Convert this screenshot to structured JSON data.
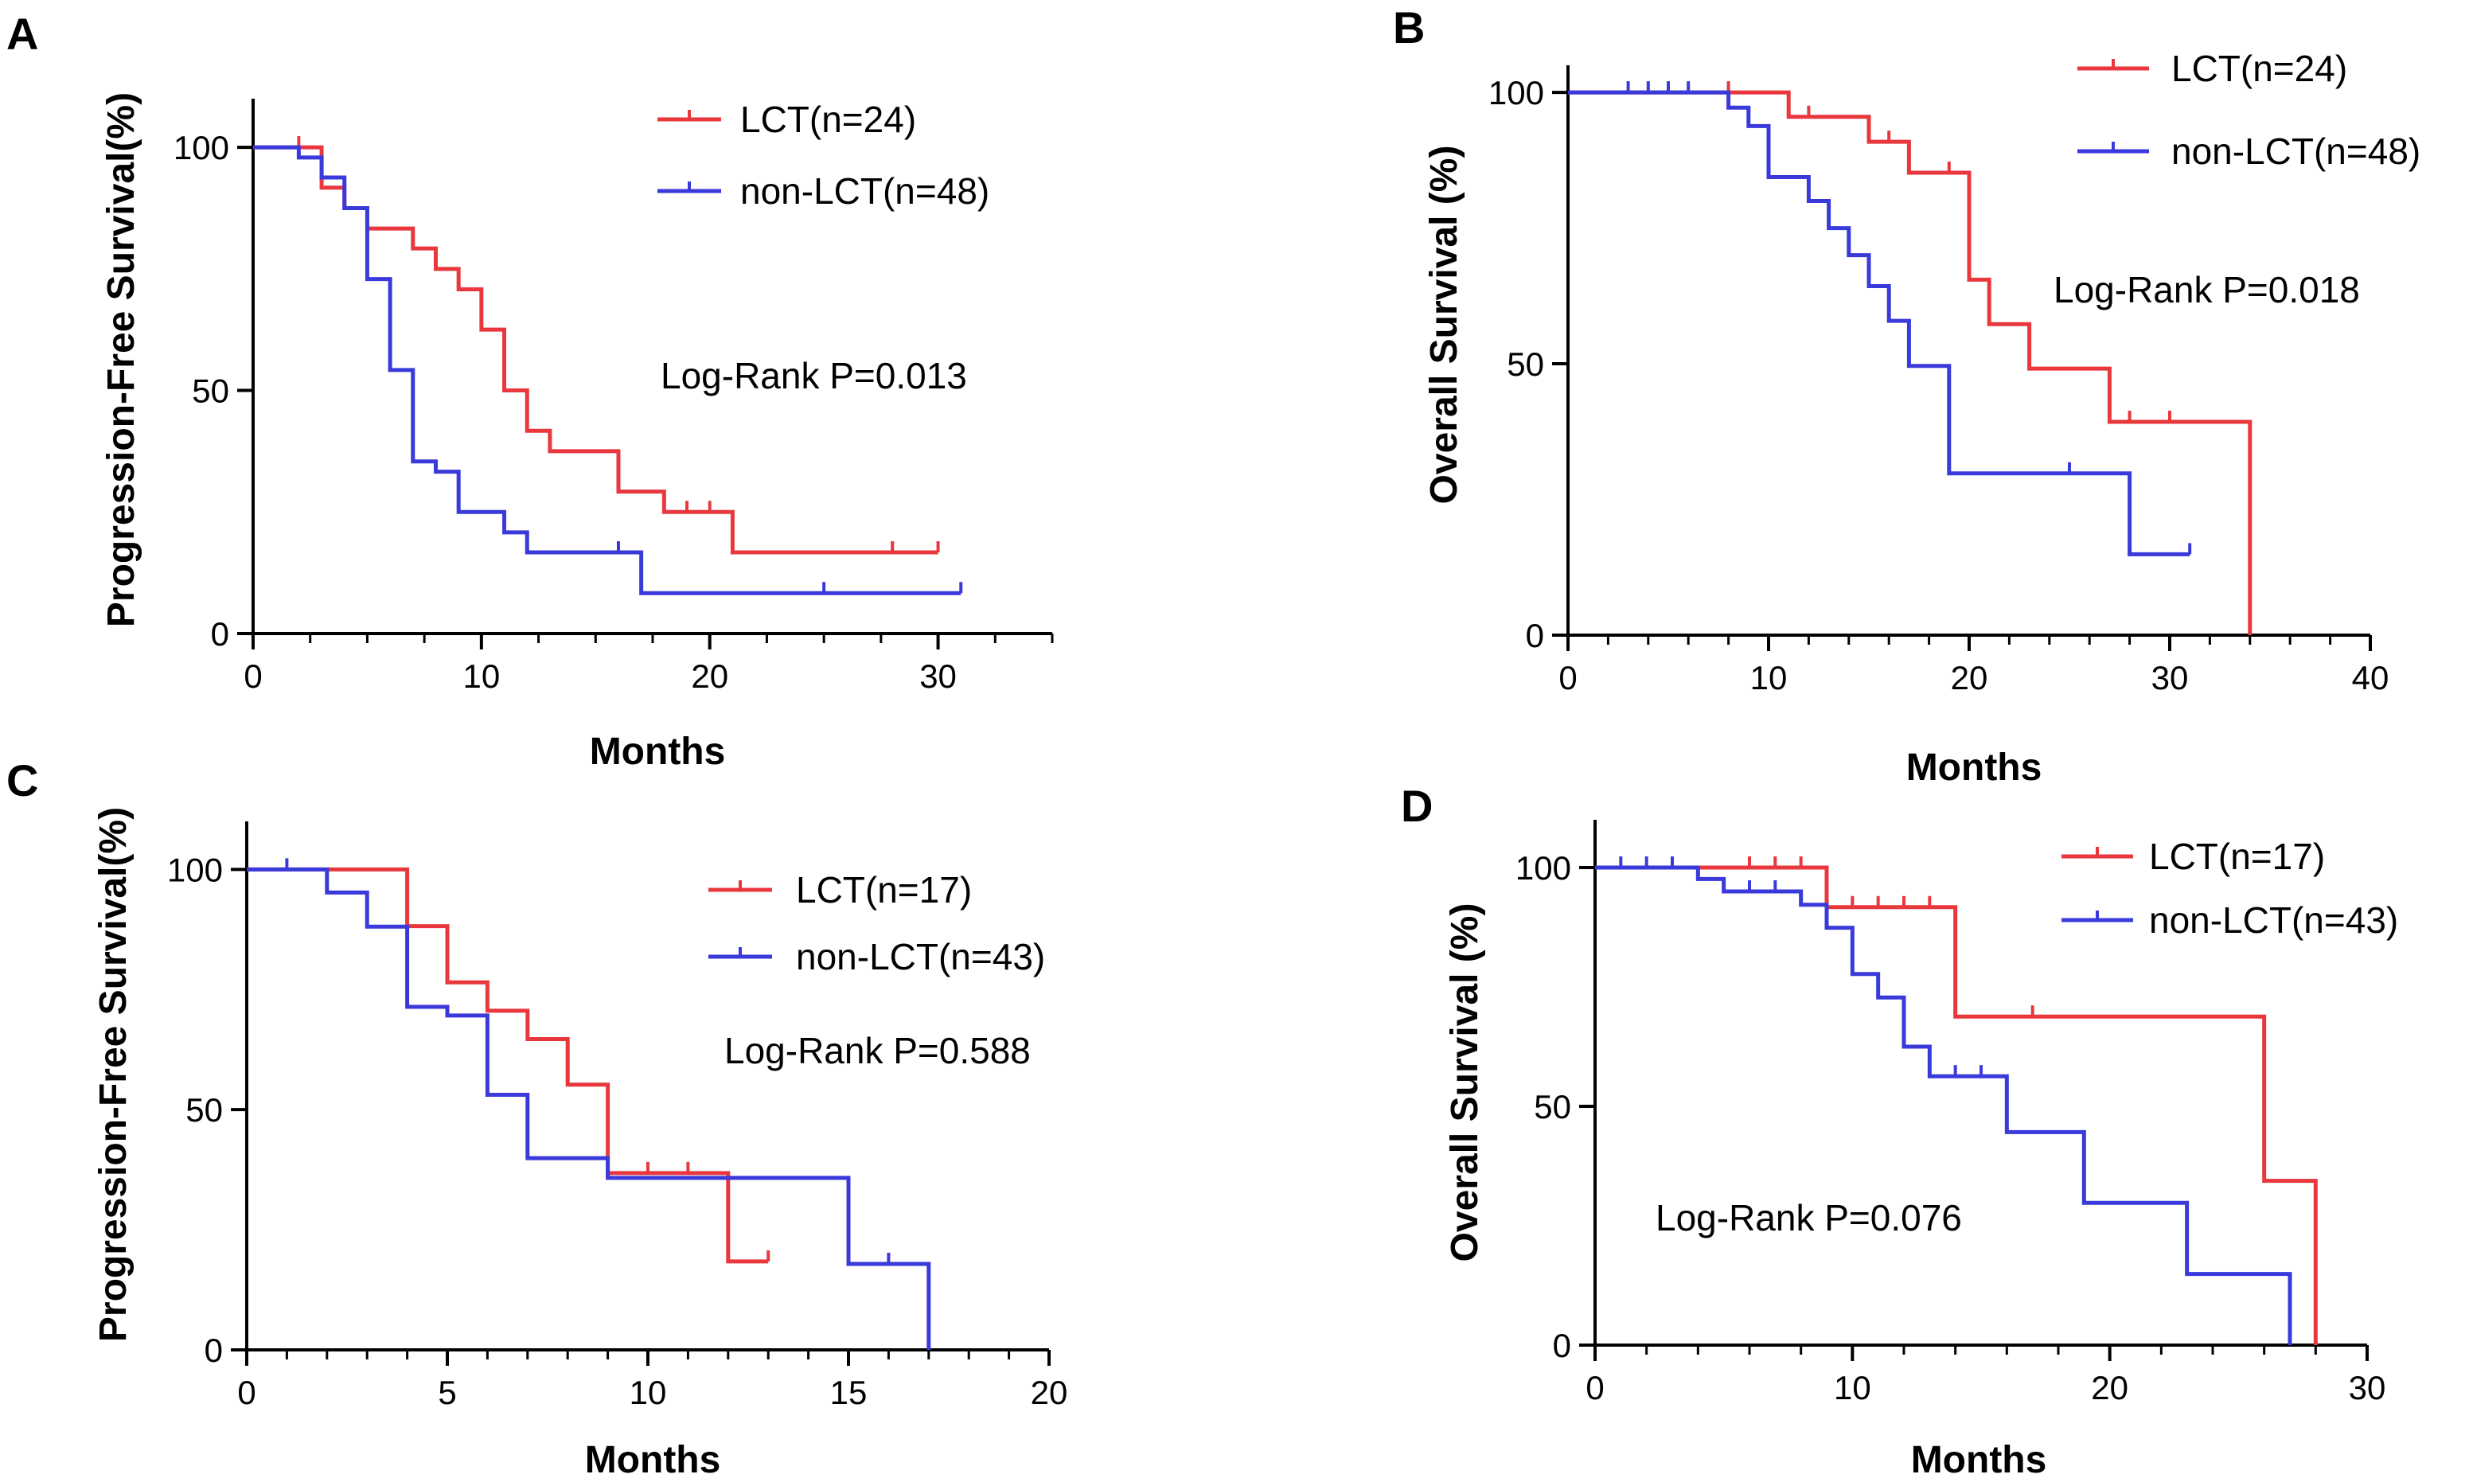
{
  "figure": {
    "colors": {
      "lct": "#e8383d",
      "non_lct": "#3a3adb",
      "axis": "#000000"
    }
  },
  "chart_data": [
    {
      "panel": "A",
      "type": "line",
      "subtype": "kaplan-meier",
      "xlabel": "Months",
      "ylabel": "Progression-Free Survival(%)",
      "xlim": [
        0,
        35
      ],
      "ylim": [
        0,
        110
      ],
      "xticks": [
        0,
        10,
        20,
        30
      ],
      "yticks": [
        0,
        50,
        100
      ],
      "x_minor_step": 2.5,
      "annotation": "Log-Rank P=0.013",
      "series": [
        {
          "name": "LCT(n=24)",
          "color": "#e8383d",
          "steps": [
            [
              0,
              100
            ],
            [
              3,
              91.7
            ],
            [
              4,
              87.5
            ],
            [
              5,
              83.3
            ],
            [
              7,
              79.2
            ],
            [
              8,
              75
            ],
            [
              9,
              70.8
            ],
            [
              10,
              62.5
            ],
            [
              11,
              50
            ],
            [
              12,
              41.7
            ],
            [
              13,
              37.5
            ],
            [
              16,
              29.2
            ],
            [
              18,
              25
            ],
            [
              21,
              16.7
            ],
            [
              30,
              16.7
            ]
          ],
          "censor": [
            [
              2,
              100
            ],
            [
              19,
              25
            ],
            [
              20,
              25
            ],
            [
              28,
              16.7
            ],
            [
              30,
              16.7
            ]
          ]
        },
        {
          "name": "non-LCT(n=48)",
          "color": "#3a3adb",
          "steps": [
            [
              0,
              100
            ],
            [
              2,
              97.9
            ],
            [
              3,
              93.8
            ],
            [
              4,
              87.5
            ],
            [
              5,
              72.9
            ],
            [
              6,
              54.2
            ],
            [
              7,
              35.4
            ],
            [
              8,
              33.3
            ],
            [
              9,
              25
            ],
            [
              11,
              20.8
            ],
            [
              12,
              16.7
            ],
            [
              17,
              8.3
            ],
            [
              31,
              8.3
            ]
          ],
          "censor": [
            [
              16,
              16.7
            ],
            [
              25,
              8.3
            ],
            [
              31,
              8.3
            ]
          ]
        }
      ]
    },
    {
      "panel": "B",
      "type": "line",
      "subtype": "kaplan-meier",
      "xlabel": "Months",
      "ylabel": "Overall Survival (%)",
      "xlim": [
        0,
        40
      ],
      "ylim": [
        0,
        105
      ],
      "xticks": [
        0,
        10,
        20,
        30,
        40
      ],
      "yticks": [
        0,
        50,
        100
      ],
      "x_minor_step": 2,
      "annotation": "Log-Rank P=0.018",
      "series": [
        {
          "name": "LCT(n=24)",
          "color": "#e8383d",
          "steps": [
            [
              0,
              100
            ],
            [
              11,
              95.5
            ],
            [
              15,
              90.9
            ],
            [
              17,
              85.2
            ],
            [
              20,
              65.5
            ],
            [
              21,
              57.3
            ],
            [
              23,
              49.1
            ],
            [
              27,
              39.3
            ],
            [
              34,
              39.3
            ],
            [
              34,
              0
            ]
          ],
          "censor": [
            [
              8,
              100
            ],
            [
              12,
              95.5
            ],
            [
              16,
              90.9
            ],
            [
              19,
              85.2
            ],
            [
              28,
              39.3
            ],
            [
              30,
              39.3
            ]
          ]
        },
        {
          "name": "non-LCT(n=48)",
          "color": "#3a3adb",
          "steps": [
            [
              0,
              100
            ],
            [
              8,
              97.2
            ],
            [
              9,
              93.8
            ],
            [
              10,
              84.4
            ],
            [
              12,
              80
            ],
            [
              13,
              75
            ],
            [
              14,
              70
            ],
            [
              15,
              64.3
            ],
            [
              16,
              57.9
            ],
            [
              17,
              49.6
            ],
            [
              19,
              29.8
            ],
            [
              28,
              14.9
            ],
            [
              31,
              14.9
            ]
          ],
          "censor": [
            [
              3,
              100
            ],
            [
              4,
              100
            ],
            [
              5,
              100
            ],
            [
              6,
              100
            ],
            [
              25,
              29.8
            ],
            [
              31,
              14.9
            ]
          ]
        }
      ]
    },
    {
      "panel": "C",
      "type": "line",
      "subtype": "kaplan-meier",
      "xlabel": "Months",
      "ylabel": "Progression-Free Survival(%)",
      "xlim": [
        0,
        20
      ],
      "ylim": [
        0,
        110
      ],
      "xticks": [
        0,
        5,
        10,
        15,
        20
      ],
      "yticks": [
        0,
        50,
        100
      ],
      "x_minor_step": 1,
      "annotation": "Log-Rank P=0.588",
      "series": [
        {
          "name": "LCT(n=17)",
          "color": "#e8383d",
          "steps": [
            [
              0,
              100
            ],
            [
              4,
              88.2
            ],
            [
              5,
              76.5
            ],
            [
              6,
              70.6
            ],
            [
              7,
              64.7
            ],
            [
              8,
              55.2
            ],
            [
              9,
              36.8
            ],
            [
              12,
              18.4
            ],
            [
              13,
              18.4
            ]
          ],
          "censor": [
            [
              10,
              36.8
            ],
            [
              11,
              36.8
            ],
            [
              13,
              18.4
            ]
          ]
        },
        {
          "name": "non-LCT(n=43)",
          "color": "#3a3adb",
          "steps": [
            [
              0,
              100
            ],
            [
              2,
              95.2
            ],
            [
              3,
              88.1
            ],
            [
              4,
              71.4
            ],
            [
              5,
              69.6
            ],
            [
              6,
              53.1
            ],
            [
              7,
              39.9
            ],
            [
              9,
              35.8
            ],
            [
              15,
              17.9
            ],
            [
              17,
              17.9
            ],
            [
              17,
              0
            ]
          ],
          "censor": [
            [
              1,
              100
            ],
            [
              16,
              17.9
            ]
          ]
        }
      ]
    },
    {
      "panel": "D",
      "type": "line",
      "subtype": "kaplan-meier",
      "xlabel": "Months",
      "ylabel": "Overall Survival (%)",
      "xlim": [
        0,
        30
      ],
      "ylim": [
        0,
        110
      ],
      "xticks": [
        0,
        10,
        20,
        30
      ],
      "yticks": [
        0,
        50,
        100
      ],
      "x_minor_step": 2,
      "annotation": "Log-Rank P=0.076",
      "series": [
        {
          "name": "LCT(n=17)",
          "color": "#e8383d",
          "steps": [
            [
              0,
              100
            ],
            [
              9,
              91.7
            ],
            [
              14,
              68.8
            ],
            [
              26,
              34.4
            ],
            [
              28,
              34.4
            ],
            [
              28,
              0
            ]
          ],
          "censor": [
            [
              6,
              100
            ],
            [
              7,
              100
            ],
            [
              8,
              100
            ],
            [
              10,
              91.7
            ],
            [
              11,
              91.7
            ],
            [
              12,
              91.7
            ],
            [
              13,
              91.7
            ],
            [
              17,
              68.8
            ]
          ]
        },
        {
          "name": "non-LCT(n=43)",
          "color": "#3a3adb",
          "steps": [
            [
              0,
              100
            ],
            [
              4,
              97.6
            ],
            [
              5,
              95
            ],
            [
              8,
              92.2
            ],
            [
              9,
              87.4
            ],
            [
              10,
              77.7
            ],
            [
              11,
              72.8
            ],
            [
              12,
              62.5
            ],
            [
              13,
              56.3
            ],
            [
              16,
              44.6
            ],
            [
              19,
              29.8
            ],
            [
              23,
              14.9
            ],
            [
              27,
              14.9
            ],
            [
              27,
              0
            ]
          ],
          "censor": [
            [
              1,
              100
            ],
            [
              2,
              100
            ],
            [
              3,
              100
            ],
            [
              6,
              95
            ],
            [
              7,
              95
            ],
            [
              14,
              56.3
            ],
            [
              15,
              56.3
            ]
          ]
        }
      ]
    }
  ]
}
